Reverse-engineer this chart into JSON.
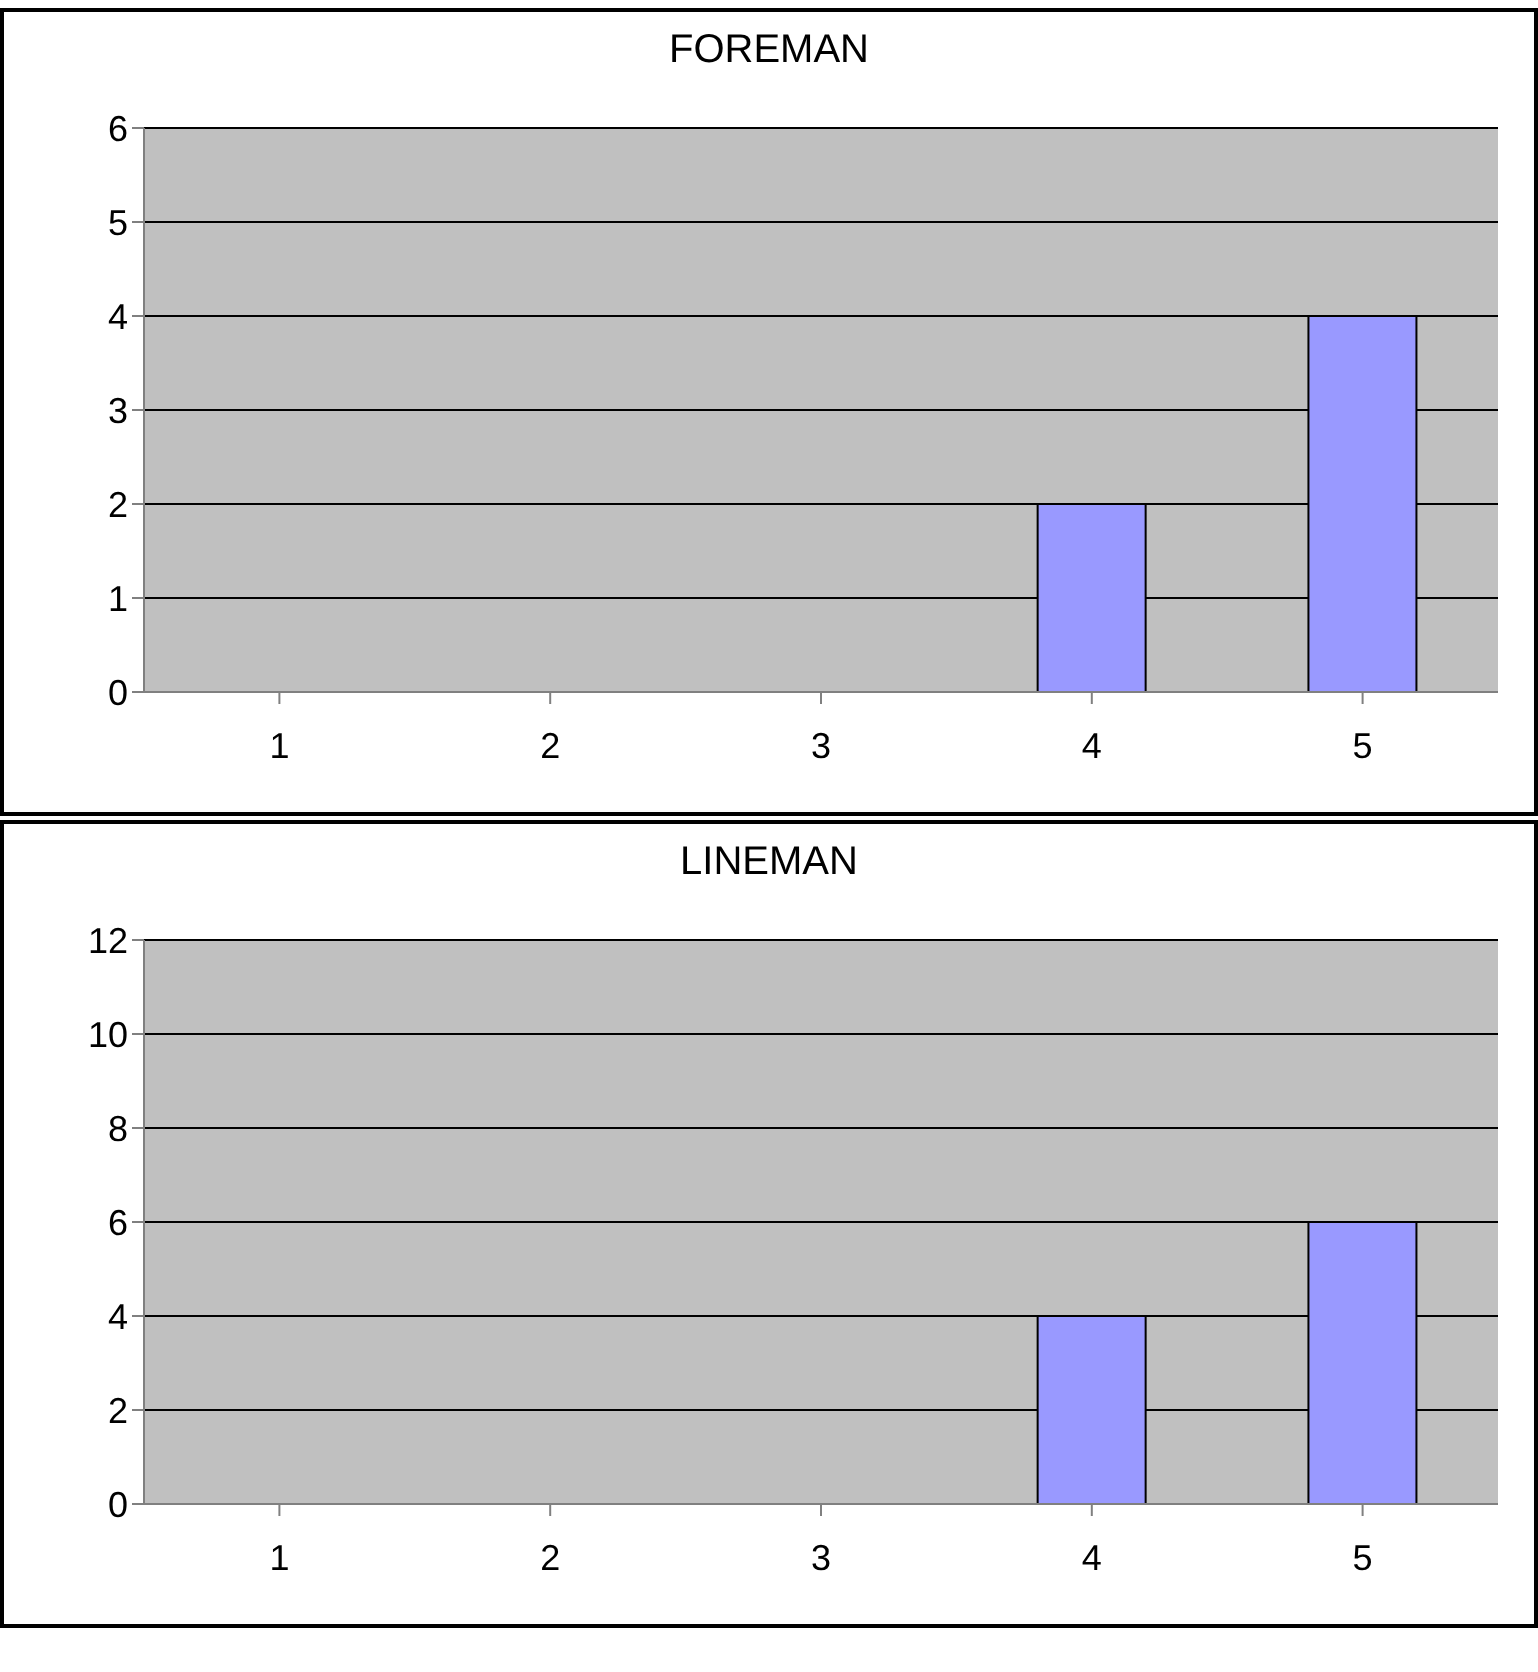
{
  "chart_data": [
    {
      "type": "bar",
      "title": "FOREMAN",
      "categories": [
        "1",
        "2",
        "3",
        "4",
        "5"
      ],
      "values": [
        0,
        0,
        0,
        2,
        4
      ],
      "color": "#9999ff",
      "ylim": [
        0,
        6
      ],
      "yticks": [
        0,
        1,
        2,
        3,
        4,
        5,
        6
      ],
      "grid": "y",
      "legend": false
    },
    {
      "type": "bar",
      "title": "LINEMAN",
      "categories": [
        "1",
        "2",
        "3",
        "4",
        "5"
      ],
      "values": [
        0,
        0,
        0,
        4,
        6
      ],
      "color": "#9999ff",
      "ylim": [
        0,
        12
      ],
      "yticks": [
        0,
        2,
        4,
        6,
        8,
        10,
        12
      ],
      "grid": "y",
      "legend": false
    }
  ]
}
